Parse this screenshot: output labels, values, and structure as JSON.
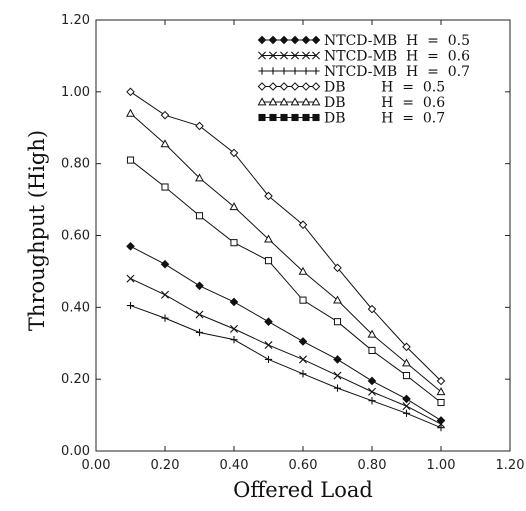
{
  "chart_data": {
    "type": "line",
    "title": "",
    "xlabel": "Offered Load",
    "ylabel": "Throughput (High)",
    "xlim": [
      0.0,
      1.2
    ],
    "ylim": [
      0.0,
      1.2
    ],
    "x_ticks": [
      "0.00",
      "0.20",
      "0.40",
      "0.60",
      "0.80",
      "1.00",
      "1.20"
    ],
    "y_ticks": [
      "0.00",
      "0.20",
      "0.40",
      "0.60",
      "0.80",
      "1.00",
      "1.20"
    ],
    "grid": false,
    "legend_position": "top-right",
    "x": [
      0.1,
      0.2,
      0.3,
      0.4,
      0.5,
      0.6,
      0.7,
      0.8,
      0.9,
      1.0
    ],
    "series": [
      {
        "name": "NTCD-MB  H  =  0.5",
        "marker": "filled-diamond",
        "values": [
          0.57,
          0.52,
          0.46,
          0.415,
          0.36,
          0.305,
          0.255,
          0.195,
          0.145,
          0.085
        ]
      },
      {
        "name": "NTCD-MB  H  =  0.6",
        "marker": "x",
        "values": [
          0.48,
          0.435,
          0.38,
          0.34,
          0.295,
          0.255,
          0.21,
          0.165,
          0.125,
          0.075
        ]
      },
      {
        "name": "NTCD-MB  H  =  0.7",
        "marker": "plus",
        "values": [
          0.405,
          0.37,
          0.33,
          0.31,
          0.255,
          0.215,
          0.175,
          0.14,
          0.105,
          0.065
        ]
      },
      {
        "name": "DB        H  =  0.5",
        "marker": "open-diamond",
        "values": [
          1.0,
          0.935,
          0.905,
          0.83,
          0.71,
          0.63,
          0.51,
          0.395,
          0.29,
          0.195
        ]
      },
      {
        "name": "DB        H  =  0.6",
        "marker": "open-triangle",
        "values": [
          0.94,
          0.855,
          0.76,
          0.68,
          0.59,
          0.5,
          0.42,
          0.325,
          0.245,
          0.165
        ]
      },
      {
        "name": "DB        H  =  0.7",
        "marker": "open-square",
        "values": [
          0.81,
          0.735,
          0.655,
          0.58,
          0.53,
          0.42,
          0.36,
          0.28,
          0.21,
          0.135
        ]
      }
    ]
  }
}
